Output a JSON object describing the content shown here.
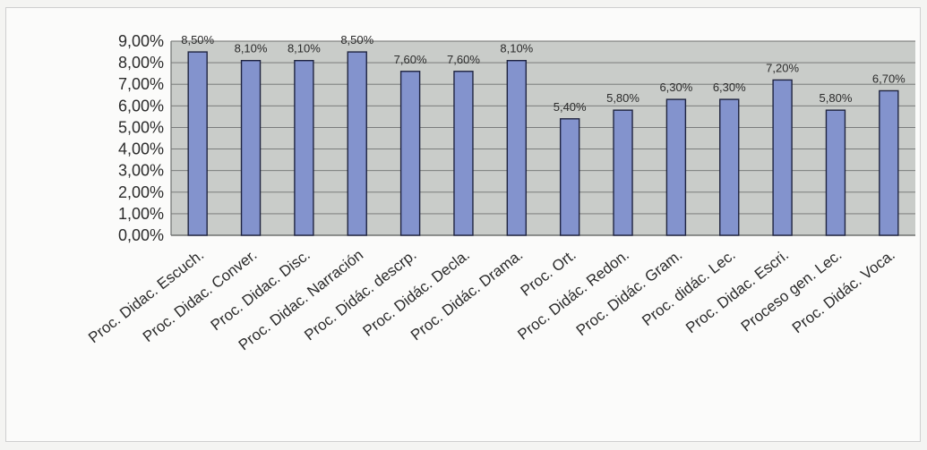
{
  "chart_data": {
    "type": "bar",
    "categories": [
      "Proc. Didac. Escuch.",
      "Proc. Didac. Conver.",
      "Proc. Didac. Disc.",
      "Proc. Didac. Narración",
      "Proc. Didác. descrp.",
      "Proc. Didác. Decla.",
      "Proc. Didác. Drama.",
      "Proc. Ort.",
      "Proc. Didác. Redon.",
      "Proc. Didác. Gram.",
      "Proc. didác. Lec.",
      "Proc. Didac. Escri.",
      "Proceso gen. Lec.",
      "Proc. Didác. Voca."
    ],
    "values": [
      8.5,
      8.1,
      8.1,
      8.5,
      7.6,
      7.6,
      8.1,
      5.4,
      5.8,
      6.3,
      6.3,
      7.2,
      5.8,
      6.7
    ],
    "data_labels": [
      "8,50%",
      "8,10%",
      "8,10%",
      "8,50%",
      "7,60%",
      "7,60%",
      "8,10%",
      "5,40%",
      "5,80%",
      "6,30%",
      "6,30%",
      "7,20%",
      "5,80%",
      "6,70%"
    ],
    "y_ticks": [
      0,
      1,
      2,
      3,
      4,
      5,
      6,
      7,
      8,
      9
    ],
    "y_tick_labels": [
      "0,00%",
      "1,00%",
      "2,00%",
      "3,00%",
      "4,00%",
      "5,00%",
      "6,00%",
      "7,00%",
      "8,00%",
      "9,00%"
    ],
    "ylim": [
      0,
      9
    ],
    "grid": true,
    "title": "",
    "xlabel": "",
    "ylabel": "",
    "colors": {
      "bar_fill": "#8393cd",
      "bar_stroke": "#1f2440",
      "plot_bg": "#c9ccc9",
      "gridline": "#6f7170",
      "text": "#2b2b2b"
    }
  }
}
